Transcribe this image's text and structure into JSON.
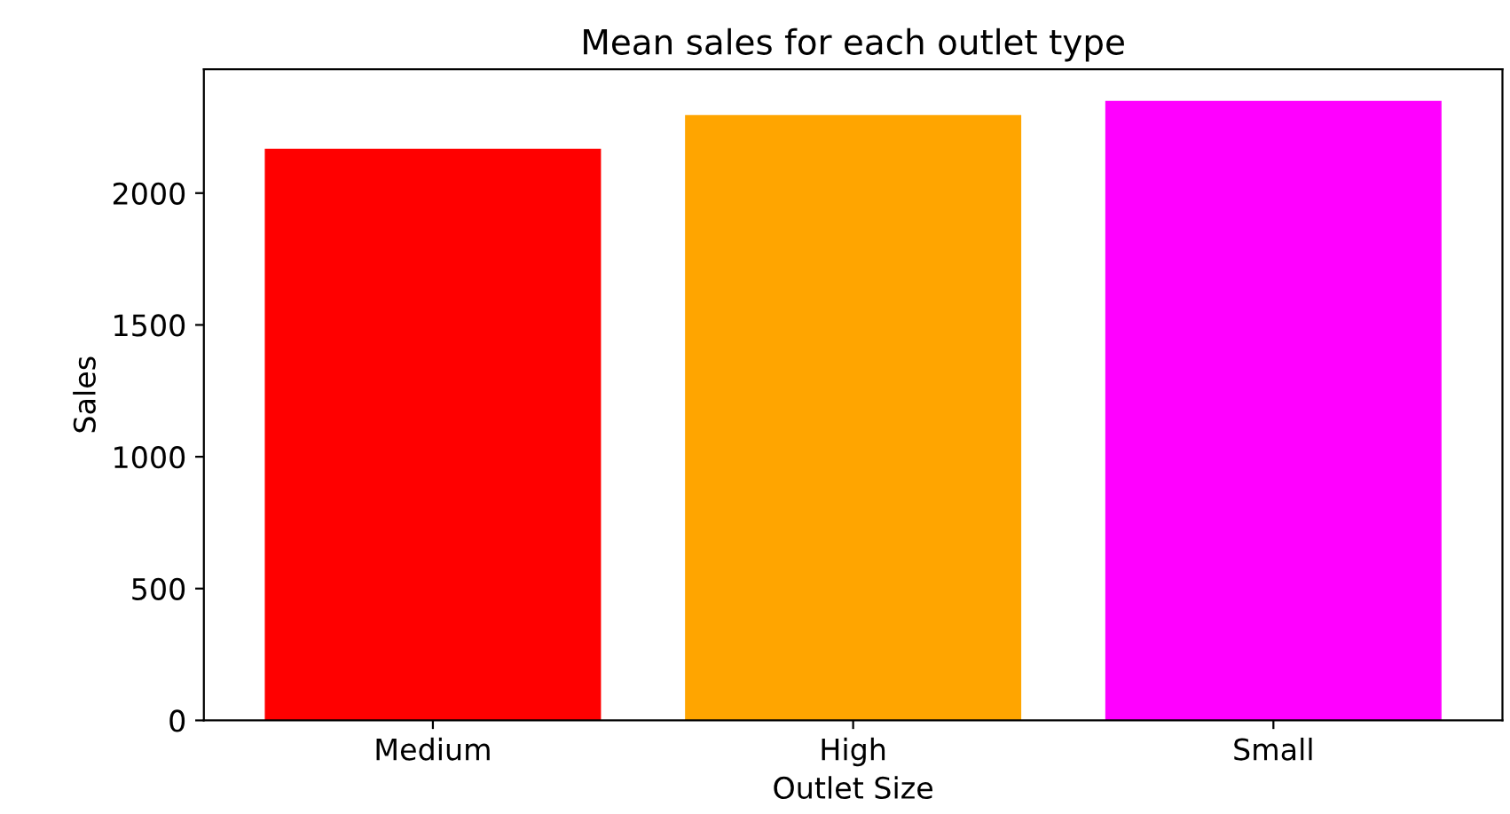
{
  "chart_data": {
    "type": "bar",
    "title": "Mean sales for each outlet type",
    "xlabel": "Outlet Size",
    "ylabel": "Sales",
    "categories": [
      "Medium",
      "High",
      "Small"
    ],
    "values": [
      2168,
      2296,
      2350
    ],
    "colors": [
      "#ff0000",
      "#ffa500",
      "#ff00ff"
    ],
    "ylim": [
      0,
      2470
    ],
    "yticks": [
      0,
      500,
      1000,
      1500,
      2000
    ],
    "grid": false,
    "legend": false
  }
}
